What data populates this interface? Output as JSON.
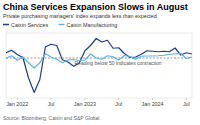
{
  "chart_data": {
    "type": "line",
    "title": "China Services Expansion Slows in August",
    "subtitle": "Private purchasing managers' index expands less than expected",
    "annotation": "Reading below 50 indicates contraction",
    "source": "Source: Bloomberg, Caixin and S&P Global",
    "categories": [
      null,
      null,
      "Jan 2022",
      null,
      null,
      null,
      null,
      null,
      "Jul",
      null,
      null,
      null,
      null,
      null,
      "Jan 2023",
      null,
      null,
      null,
      null,
      null,
      "Jul",
      null,
      null,
      null,
      null,
      null,
      "Jan 2024",
      null,
      null,
      null,
      null,
      null,
      "Jul",
      null
    ],
    "series": [
      {
        "name": "Caixin Services",
        "color": "#1b3f8b",
        "values": [
          52.1,
          53.1,
          51.4,
          50.2,
          42.0,
          36.2,
          41.4,
          54.5,
          55.5,
          55.0,
          49.3,
          48.4,
          46.7,
          48.0,
          52.9,
          55.0,
          57.8,
          56.4,
          57.1,
          53.9,
          54.1,
          51.8,
          50.2,
          50.4,
          51.5,
          52.9,
          52.7,
          52.5,
          52.7,
          52.5,
          54.0,
          51.2,
          52.1,
          51.6
        ]
      },
      {
        "name": "Caixin Manufacturing",
        "color": "#5ab4e5",
        "values": [
          49.9,
          50.9,
          49.1,
          50.4,
          48.1,
          46.0,
          48.1,
          51.7,
          50.4,
          49.5,
          48.1,
          49.2,
          49.4,
          49.0,
          49.2,
          51.6,
          50.0,
          49.5,
          50.9,
          50.5,
          49.2,
          51.0,
          50.6,
          49.5,
          50.7,
          50.8,
          50.8,
          50.9,
          51.1,
          51.4,
          51.7,
          51.8,
          49.8,
          50.4
        ]
      }
    ],
    "ylim": [
      34,
      60
    ],
    "yticks": [
      50
    ],
    "tick_labels": "x",
    "legend": "top-left"
  }
}
